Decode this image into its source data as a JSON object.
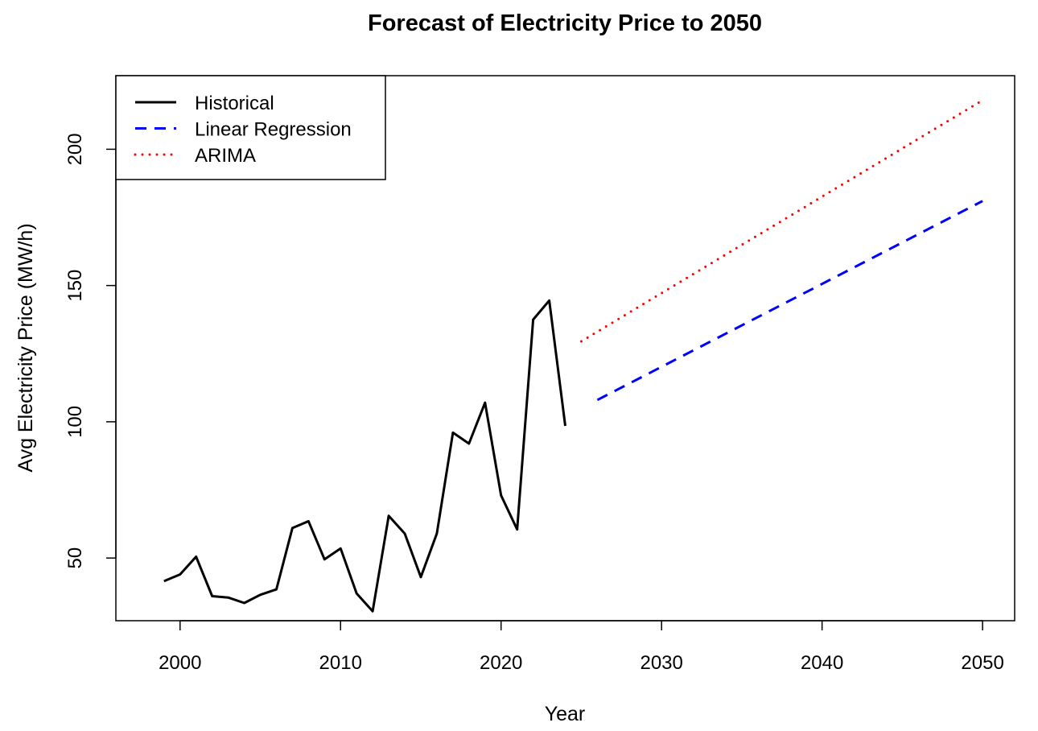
{
  "chart_data": {
    "type": "line",
    "title": "Forecast of Electricity Price to 2050",
    "xlabel": "Year",
    "ylabel": "Avg Electricity Price (MW/h)",
    "xlim": [
      1996,
      2052
    ],
    "ylim": [
      27,
      227
    ],
    "x_ticks": [
      2000,
      2010,
      2020,
      2030,
      2040,
      2050
    ],
    "y_ticks": [
      50,
      100,
      150,
      200
    ],
    "grid": false,
    "legend_position": "top-left",
    "series": [
      {
        "name": "Historical",
        "style": "solid",
        "color": "#000000",
        "x": [
          1999,
          2000,
          2001,
          2002,
          2003,
          2004,
          2005,
          2006,
          2007,
          2008,
          2009,
          2010,
          2011,
          2012,
          2013,
          2014,
          2015,
          2016,
          2017,
          2018,
          2019,
          2020,
          2021,
          2022,
          2023,
          2024
        ],
        "values": [
          41.5,
          44,
          50.5,
          36,
          35.5,
          33.5,
          36.5,
          38.5,
          61,
          63.5,
          49.5,
          53.5,
          37,
          30.5,
          65.5,
          59,
          43,
          59,
          96,
          92,
          107,
          73,
          60.5,
          137.5,
          144.5,
          98.5
        ]
      },
      {
        "name": "Linear Regression",
        "style": "dashed",
        "color": "#0000ff",
        "x": [
          2026,
          2050
        ],
        "values": [
          108,
          181
        ]
      },
      {
        "name": "ARIMA",
        "style": "dotted",
        "color": "#ff0000",
        "x": [
          2025,
          2050
        ],
        "values": [
          129.5,
          218
        ]
      }
    ]
  }
}
